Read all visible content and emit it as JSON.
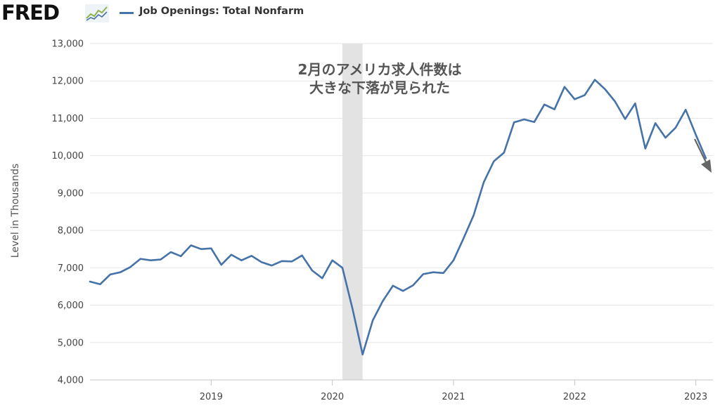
{
  "header": {
    "logo_text": "FRED",
    "legend_series_label": "Job Openings: Total Nonfarm",
    "logo_icon": "mini-line-chart-icon"
  },
  "colors": {
    "series": "#4572a7",
    "recession_band": "#e3e3e3",
    "arrow": "#666666",
    "grid": "#e6e6e6"
  },
  "chart_data": {
    "type": "line",
    "title": "",
    "xlabel": "",
    "ylabel": "Level in Thousands",
    "ylim": [
      4000,
      13000
    ],
    "y_ticks": [
      4000,
      5000,
      6000,
      7000,
      8000,
      9000,
      10000,
      11000,
      12000,
      13000
    ],
    "y_tick_labels": [
      "4,000",
      "5,000",
      "6,000",
      "7,000",
      "8,000",
      "9,000",
      "10,000",
      "11,000",
      "12,000",
      "13,000"
    ],
    "x_range": [
      "2018-01",
      "2023-02"
    ],
    "x_tick_labels": [
      "2019",
      "2020",
      "2021",
      "2022",
      "2023"
    ],
    "x_ticks": [
      "2019-01",
      "2020-01",
      "2021-01",
      "2022-01",
      "2023-01"
    ],
    "grid": true,
    "recession_shading": {
      "start": "2020-02",
      "end": "2020-04"
    },
    "series": [
      {
        "name": "Job Openings: Total Nonfarm",
        "x": [
          "2018-01",
          "2018-02",
          "2018-03",
          "2018-04",
          "2018-05",
          "2018-06",
          "2018-07",
          "2018-08",
          "2018-09",
          "2018-10",
          "2018-11",
          "2018-12",
          "2019-01",
          "2019-02",
          "2019-03",
          "2019-04",
          "2019-05",
          "2019-06",
          "2019-07",
          "2019-08",
          "2019-09",
          "2019-10",
          "2019-11",
          "2019-12",
          "2020-01",
          "2020-02",
          "2020-03",
          "2020-04",
          "2020-05",
          "2020-06",
          "2020-07",
          "2020-08",
          "2020-09",
          "2020-10",
          "2020-11",
          "2020-12",
          "2021-01",
          "2021-02",
          "2021-03",
          "2021-04",
          "2021-05",
          "2021-06",
          "2021-07",
          "2021-08",
          "2021-09",
          "2021-10",
          "2021-11",
          "2021-12",
          "2022-01",
          "2022-02",
          "2022-03",
          "2022-04",
          "2022-05",
          "2022-06",
          "2022-07",
          "2022-08",
          "2022-09",
          "2022-10",
          "2022-11",
          "2022-12",
          "2023-01",
          "2023-02"
        ],
        "values": [
          6630,
          6560,
          6820,
          6880,
          7020,
          7240,
          7200,
          7220,
          7420,
          7310,
          7600,
          7500,
          7520,
          7080,
          7350,
          7200,
          7320,
          7150,
          7060,
          7180,
          7170,
          7330,
          6930,
          6720,
          7200,
          7000,
          5900,
          4680,
          5590,
          6110,
          6520,
          6380,
          6530,
          6830,
          6880,
          6860,
          7200,
          7790,
          8410,
          9290,
          9850,
          10080,
          10890,
          10970,
          10900,
          11370,
          11240,
          11840,
          11510,
          11620,
          12030,
          11780,
          11450,
          10980,
          11400,
          10190,
          10870,
          10480,
          10750,
          11230,
          10560,
          9930
        ]
      }
    ],
    "annotations": [
      {
        "text_lines": [
          "2月のアメリカ求人件数は",
          "大きな下落が見られた"
        ]
      },
      {
        "type": "arrow",
        "direction": "down-right"
      }
    ]
  }
}
